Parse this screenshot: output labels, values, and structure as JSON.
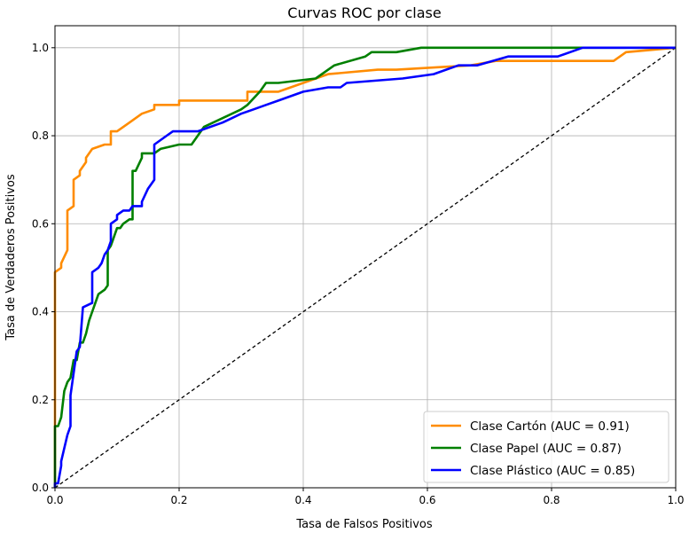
{
  "chart_data": {
    "type": "line",
    "title": "Curvas ROC por clase",
    "xlabel": "Tasa de Falsos Positivos",
    "ylabel": "Tasa de Verdaderos Positivos",
    "xlim": [
      0.0,
      1.0
    ],
    "ylim": [
      0.0,
      1.05
    ],
    "xticks": [
      "0.0",
      "0.2",
      "0.4",
      "0.6",
      "0.8",
      "1.0"
    ],
    "yticks": [
      "0.0",
      "0.2",
      "0.4",
      "0.6",
      "0.8",
      "1.0"
    ],
    "grid": true,
    "legend_position": "lower-right",
    "diagonal": {
      "x": [
        0,
        1
      ],
      "y": [
        0,
        1
      ],
      "color": "#000000",
      "style": "dashed"
    },
    "series": [
      {
        "name": "Clase Cartón (AUC = 0.91)",
        "color": "#ff8c00",
        "x": [
          0,
          0,
          0.01,
          0.01,
          0.02,
          0.02,
          0.02,
          0.03,
          0.03,
          0.04,
          0.04,
          0.05,
          0.05,
          0.06,
          0.06,
          0.08,
          0.08,
          0.09,
          0.09,
          0.1,
          0.1,
          0.12,
          0.12,
          0.14,
          0.14,
          0.16,
          0.16,
          0.2,
          0.2,
          0.31,
          0.31,
          0.36,
          0.4,
          0.4,
          0.44,
          0.44,
          0.52,
          0.55,
          0.55,
          0.67,
          0.67,
          0.71,
          0.71,
          0.9,
          0.92,
          0.92,
          1.0
        ],
        "y": [
          0,
          0.49,
          0.5,
          0.51,
          0.54,
          0.54,
          0.63,
          0.64,
          0.7,
          0.71,
          0.72,
          0.74,
          0.75,
          0.77,
          0.77,
          0.78,
          0.78,
          0.78,
          0.81,
          0.81,
          0.81,
          0.83,
          0.83,
          0.85,
          0.85,
          0.86,
          0.87,
          0.87,
          0.88,
          0.88,
          0.9,
          0.9,
          0.92,
          0.92,
          0.94,
          0.94,
          0.95,
          0.95,
          0.95,
          0.96,
          0.96,
          0.97,
          0.97,
          0.97,
          0.99,
          0.99,
          1.0
        ]
      },
      {
        "name": "Clase Papel (AUC = 0.87)",
        "color": "#008000",
        "x": [
          0,
          0,
          0.005,
          0.01,
          0.015,
          0.02,
          0.025,
          0.03,
          0.035,
          0.04,
          0.045,
          0.05,
          0.055,
          0.06,
          0.065,
          0.07,
          0.08,
          0.085,
          0.085,
          0.09,
          0.1,
          0.105,
          0.11,
          0.12,
          0.125,
          0.125,
          0.13,
          0.14,
          0.14,
          0.16,
          0.17,
          0.2,
          0.22,
          0.24,
          0.3,
          0.31,
          0.33,
          0.34,
          0.36,
          0.42,
          0.45,
          0.5,
          0.51,
          0.55,
          0.59,
          0.86,
          1.0
        ],
        "y": [
          0,
          0.14,
          0.14,
          0.16,
          0.22,
          0.24,
          0.25,
          0.29,
          0.29,
          0.33,
          0.33,
          0.35,
          0.38,
          0.4,
          0.42,
          0.44,
          0.45,
          0.46,
          0.54,
          0.55,
          0.59,
          0.59,
          0.6,
          0.61,
          0.61,
          0.72,
          0.72,
          0.75,
          0.76,
          0.76,
          0.77,
          0.78,
          0.78,
          0.82,
          0.86,
          0.87,
          0.9,
          0.92,
          0.92,
          0.93,
          0.96,
          0.98,
          0.99,
          0.99,
          1.0,
          1.0,
          1.0
        ]
      },
      {
        "name": "Clase Plástico (AUC = 0.85)",
        "color": "#0000ff",
        "x": [
          0,
          0,
          0.005,
          0.01,
          0.01,
          0.015,
          0.02,
          0.025,
          0.025,
          0.03,
          0.035,
          0.04,
          0.045,
          0.045,
          0.06,
          0.06,
          0.07,
          0.075,
          0.08,
          0.085,
          0.09,
          0.09,
          0.1,
          0.1,
          0.11,
          0.12,
          0.125,
          0.125,
          0.14,
          0.14,
          0.15,
          0.16,
          0.16,
          0.17,
          0.18,
          0.19,
          0.23,
          0.25,
          0.27,
          0.3,
          0.32,
          0.34,
          0.36,
          0.4,
          0.44,
          0.46,
          0.47,
          0.56,
          0.61,
          0.65,
          0.68,
          0.73,
          0.81,
          0.85,
          1.0
        ],
        "y": [
          0,
          0.01,
          0.01,
          0.05,
          0.06,
          0.09,
          0.12,
          0.14,
          0.21,
          0.26,
          0.31,
          0.32,
          0.41,
          0.41,
          0.42,
          0.49,
          0.5,
          0.51,
          0.53,
          0.54,
          0.56,
          0.6,
          0.61,
          0.62,
          0.63,
          0.63,
          0.64,
          0.64,
          0.64,
          0.65,
          0.68,
          0.7,
          0.78,
          0.79,
          0.8,
          0.81,
          0.81,
          0.82,
          0.83,
          0.85,
          0.86,
          0.87,
          0.88,
          0.9,
          0.91,
          0.91,
          0.92,
          0.93,
          0.94,
          0.96,
          0.96,
          0.98,
          0.98,
          1.0,
          1.0
        ]
      }
    ]
  }
}
